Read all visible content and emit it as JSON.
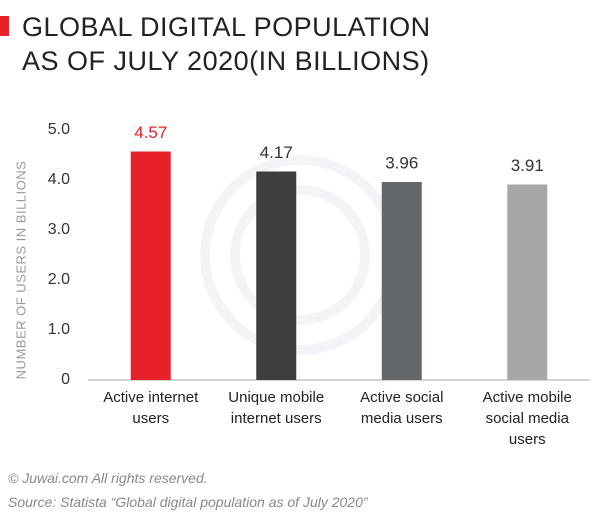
{
  "chart_data": {
    "type": "bar",
    "title": "GLOBAL DIGITAL POPULATION AS OF JULY 2020(IN BILLIONS)",
    "y_label": "NUMBER OF USERS IN BILLIONS",
    "categories": [
      "Active internet users",
      "Unique mobile internet users",
      "Active social media users",
      "Active mobile social media users"
    ],
    "values": [
      4.57,
      4.17,
      3.96,
      3.91
    ],
    "colors": [
      "#e8202a",
      "#3d3e40",
      "#65686a",
      "#a5a7a9"
    ],
    "value_label_colors": [
      "#e8202a",
      "#333333",
      "#333333",
      "#333333"
    ],
    "ylim": [
      0,
      5
    ],
    "yticks": [
      0,
      {
        "value": 1,
        "label": "1.0"
      },
      {
        "value": 2,
        "label": "2.0"
      },
      {
        "value": 3,
        "label": "3.0"
      },
      {
        "value": 4,
        "label": "4.0"
      },
      {
        "value": 5,
        "label": "5.0"
      }
    ],
    "grid": false,
    "copyright": "© Juwai.com All rights reserved.",
    "source": "Source: Statista “Global digital population as of July 2020”"
  }
}
